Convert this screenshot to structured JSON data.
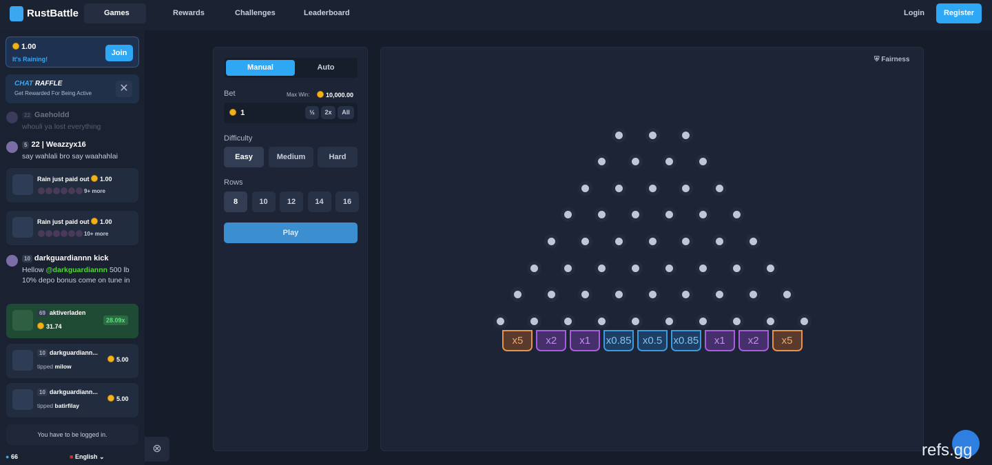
{
  "nav": {
    "brand": "RustBattle",
    "items": [
      "Games",
      "Rewards",
      "Challenges",
      "Leaderboard"
    ],
    "login": "Login",
    "register": "Register"
  },
  "sidebar": {
    "rain": {
      "amount": "1.00",
      "label": "It's Raining!",
      "join": "Join"
    },
    "raffle": {
      "title_a": "CHAT",
      "title_b": "RAFFLE",
      "subtitle": "Get Rewarded For Being Active"
    },
    "chat": [
      {
        "kind": "message",
        "level": "22",
        "name": "Gaeholdd",
        "text": "whouli ya lost everything"
      },
      {
        "kind": "message",
        "level": "5",
        "name": "22 | Weazzyx16",
        "text": "say wahlali bro say waahahlai"
      },
      {
        "kind": "rain",
        "title": "Rain just paid out",
        "amount": "1.00",
        "more": "9+ more"
      },
      {
        "kind": "rain",
        "title": "Rain just paid out",
        "amount": "1.00",
        "more": "10+ more"
      },
      {
        "kind": "message",
        "level": "10",
        "name": "darkguardiannn kick",
        "text": "Hellow",
        "mention": "@darkguardiannn",
        "rest": "500 lb 10% depo bonus come on tune in"
      },
      {
        "kind": "win",
        "level": "69",
        "name": "aktiverladen",
        "amount": "31.74",
        "multiplier": "28.09x"
      },
      {
        "kind": "tip",
        "level": "10",
        "name": "darkguardiann...",
        "action": "tipped",
        "target": "milow",
        "amount": "5.00"
      },
      {
        "kind": "tip",
        "level": "10",
        "name": "darkguardiann...",
        "action": "tipped",
        "target": "batirfilay",
        "amount": "5.00"
      }
    ],
    "notice": "You have to be logged in.",
    "online": "66",
    "language": "English"
  },
  "game": {
    "tabs": [
      "Manual",
      "Auto"
    ],
    "bet_label": "Bet",
    "max_win_label": "Max Win:",
    "max_win": "10,000.00",
    "bet_value": "1",
    "bet_buttons": [
      "½",
      "2x",
      "All"
    ],
    "difficulty_label": "Difficulty",
    "difficulties": [
      "Easy",
      "Medium",
      "Hard"
    ],
    "rows_label": "Rows",
    "rows": [
      "8",
      "10",
      "12",
      "14",
      "16"
    ],
    "play": "Play"
  },
  "board": {
    "fairness": "Fairness",
    "multipliers": [
      "x5",
      "x2",
      "x1",
      "x0.85",
      "x0.5",
      "x0.85",
      "x1",
      "x2",
      "x5"
    ]
  },
  "watermark": "refs.gg"
}
